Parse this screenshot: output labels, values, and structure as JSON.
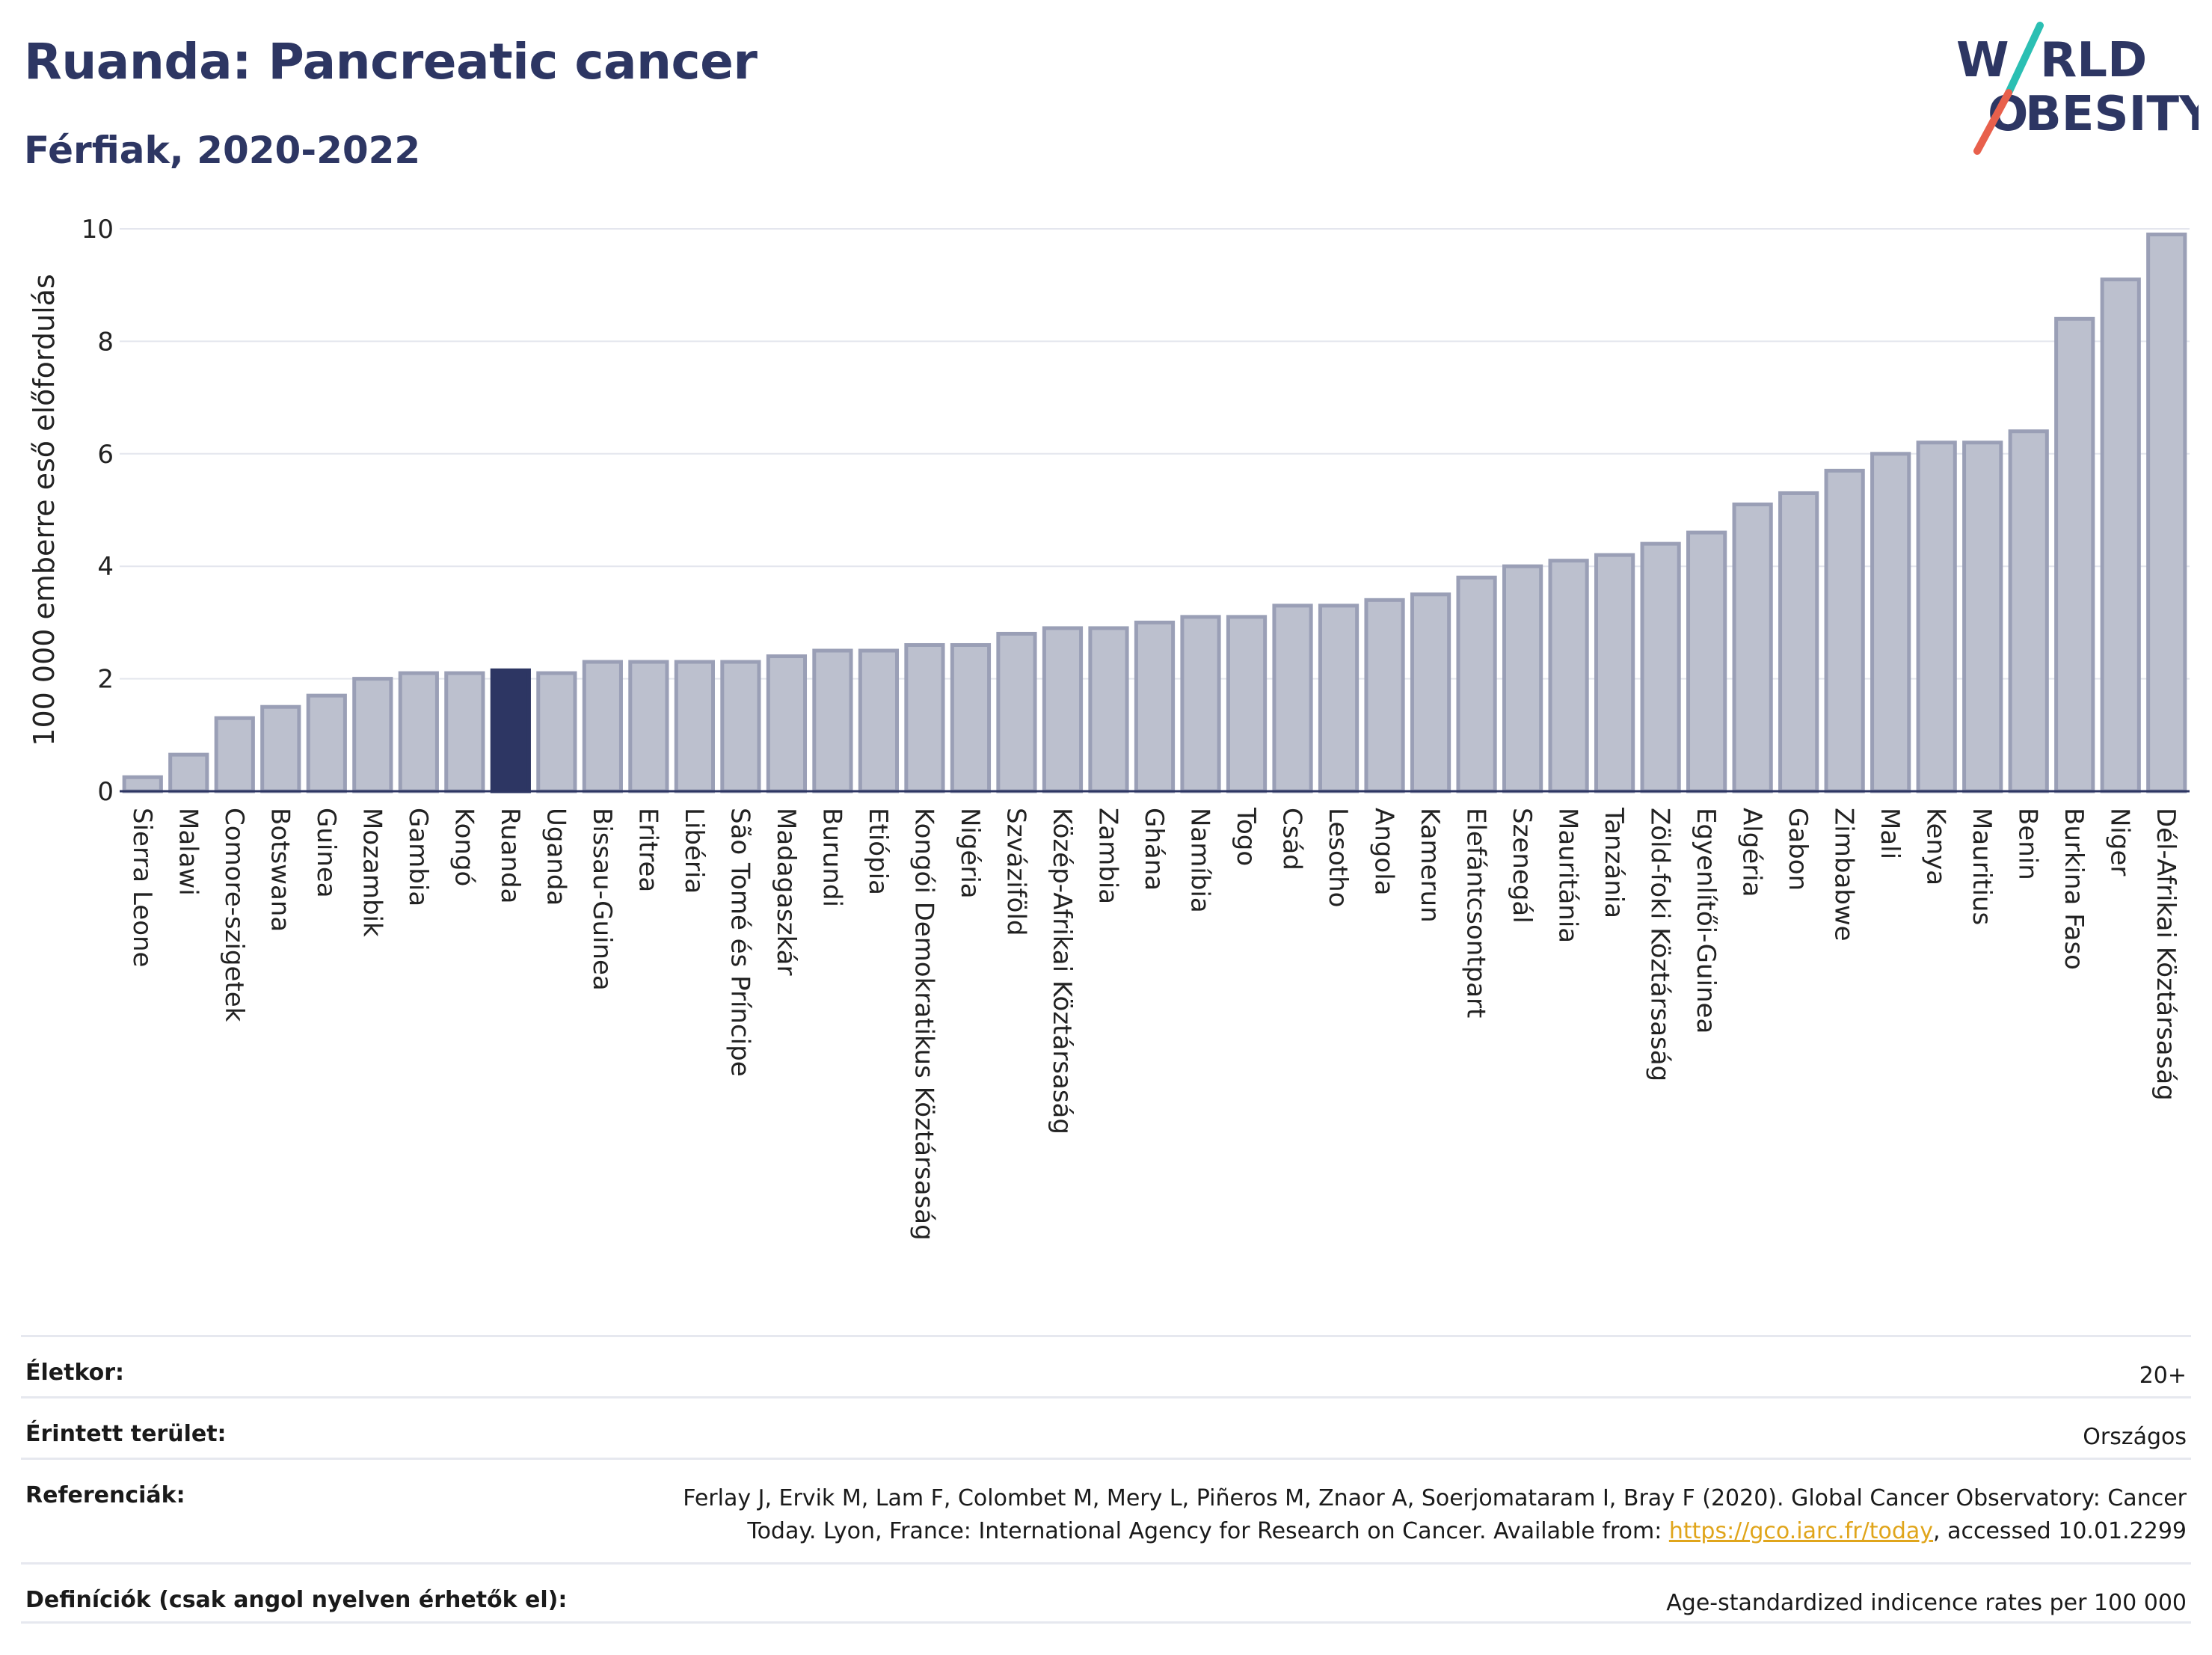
{
  "header": {
    "title": "Ruanda: Pancreatic cancer",
    "subtitle": "Férfiak, 2020-2022"
  },
  "logo": {
    "line1_a": "W",
    "line1_b": "RLD",
    "line2_a": "O",
    "line2_b": "BESITY",
    "slash_top_color": "#2bbfb3",
    "slash_bottom_color": "#e8604c",
    "text_color": "#2d3663"
  },
  "chart_data": {
    "type": "bar",
    "ylabel": "100 000 emberre eső előfordulás",
    "ylim": [
      0,
      10
    ],
    "yticks": [
      0,
      2,
      4,
      6,
      8,
      10
    ],
    "grid": true,
    "highlight": "Ruanda",
    "highlight_color": "#2d3663",
    "bar_color": "#bcc0ce",
    "bar_edge_color": "#9a9fb6",
    "categories": [
      "Sierra Leone",
      "Malawi",
      "Comore-szigetek",
      "Botswana",
      "Guinea",
      "Mozambik",
      "Gambia",
      "Kongó",
      "Ruanda",
      "Uganda",
      "Bissau-Guinea",
      "Eritrea",
      "Libéria",
      "São Tomé és Príncipe",
      "Madagaszkár",
      "Burundi",
      "Etiópia",
      "Kongói Demokratikus Köztársaság",
      "Nigéria",
      "Szváziföld",
      "Közép-Afrikai Köztársaság",
      "Zambia",
      "Ghána",
      "Namíbia",
      "Togo",
      "Csád",
      "Lesotho",
      "Angola",
      "Kamerun",
      "Elefántcsontpart",
      "Szenegál",
      "Mauritánia",
      "Tanzánia",
      "Zöld-foki Köztársaság",
      "Egyenlítői-Guinea",
      "Algéria",
      "Gabon",
      "Zimbabwe",
      "Mali",
      "Kenya",
      "Mauritius",
      "Benin",
      "Burkina Faso",
      "Niger",
      "Dél-Afrikai Köztársaság"
    ],
    "values": [
      0.25,
      0.65,
      1.3,
      1.5,
      1.7,
      2.0,
      2.1,
      2.1,
      2.15,
      2.1,
      2.3,
      2.3,
      2.3,
      2.3,
      2.4,
      2.5,
      2.5,
      2.6,
      2.6,
      2.8,
      2.9,
      2.9,
      3.0,
      3.1,
      3.1,
      3.3,
      3.3,
      3.4,
      3.5,
      3.8,
      4.0,
      4.1,
      4.2,
      4.4,
      4.6,
      5.1,
      5.3,
      5.7,
      6.0,
      6.2,
      6.2,
      6.4,
      8.4,
      9.1,
      9.9
    ]
  },
  "meta": {
    "age_label": "Életkor:",
    "age_value": "20+",
    "area_label": "Érintett terület:",
    "area_value": "Országos",
    "ref_label": "Referenciák:",
    "ref_text_1": "Ferlay J, Ervik M, Lam F, Colombet M, Mery L, Piñeros M, Znaor A, Soerjomataram I, Bray F (2020). Global Cancer Observatory: Cancer",
    "ref_text_2": "Today. Lyon, France: International Agency for Research on Cancer. Available from: ",
    "ref_link": "https://gco.iarc.fr/today",
    "ref_text_3": ", accessed 10.01.2299",
    "def_label": "Definíciók (csak angol nyelven érhetők el):",
    "def_value": "Age-standardized indicence rates per 100 000"
  }
}
